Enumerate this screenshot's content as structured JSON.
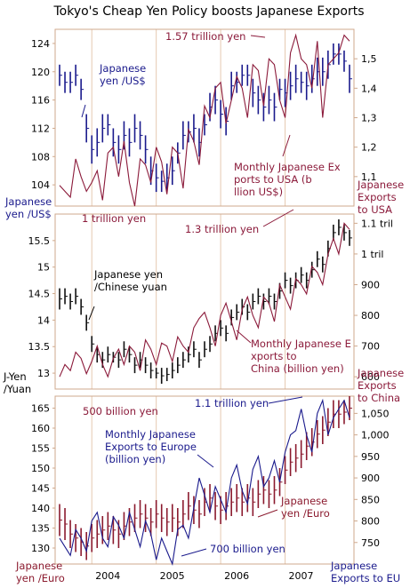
{
  "chart_title": "Tokyo's Cheap Yen Policy boosts Japanese Exports",
  "x_ticks": [
    "2004",
    "2005",
    "2006",
    "2007"
  ],
  "colors": {
    "usd": "#1a1a8c",
    "cny": "#111111",
    "eur": "#8b1a2e",
    "exports": "#8b1a3a",
    "exports_eu": "#1a1a8c",
    "grid": "#e6c9b0",
    "frame": "#cfa98d"
  },
  "chart_data": [
    {
      "type": "line",
      "panel": "usa",
      "x_start": "2003-07",
      "x_step": "month",
      "left_axis": {
        "label": "Japanese yen /US$",
        "ticks": [
          104,
          108,
          112,
          116,
          120,
          124
        ],
        "range": [
          101,
          126
        ]
      },
      "right_axis": {
        "label": "Japanese Exports to USA",
        "ticks": [
          "1,1",
          "1,2",
          "1,3",
          "1,4",
          "1,5"
        ],
        "range": [
          1.0,
          1.6
        ]
      },
      "series": [
        {
          "name": "Japanese yen /US$",
          "kind": "range",
          "axis": "left",
          "lows": [
            118,
            117,
            117,
            118,
            116,
            110,
            107,
            108,
            110,
            111,
            108,
            107,
            109,
            108,
            110,
            109,
            107,
            104,
            103,
            103,
            103,
            104,
            107,
            109,
            110,
            110,
            108,
            111,
            113,
            114,
            112,
            111,
            116,
            117,
            118,
            118,
            115,
            114,
            113,
            114,
            113,
            116,
            115,
            116,
            117,
            117,
            116,
            117,
            118,
            118,
            119,
            121,
            121,
            120,
            117
          ],
          "highs": [
            121,
            120,
            120,
            121,
            119,
            114,
            111,
            112,
            114,
            114,
            112,
            111,
            113,
            112,
            114,
            113,
            111,
            108,
            107,
            106,
            107,
            108,
            110,
            113,
            113,
            114,
            112,
            114,
            117,
            118,
            116,
            115,
            120,
            120,
            121,
            121,
            119,
            118,
            117,
            118,
            117,
            119,
            119,
            120,
            121,
            120,
            120,
            121,
            122,
            122,
            123,
            124,
            124,
            123,
            121
          ]
        },
        {
          "name": "Monthly Japanese Exports to USA (bllion US$)",
          "kind": "line",
          "axis": "right",
          "values": [
            1.07,
            1.05,
            1.03,
            1.16,
            1.1,
            1.05,
            1.08,
            1.12,
            1.02,
            1.18,
            1.2,
            1.1,
            1.22,
            1.08,
            1.0,
            1.16,
            1.14,
            1.08,
            1.2,
            1.15,
            1.04,
            1.2,
            1.18,
            1.06,
            1.26,
            1.22,
            1.14,
            1.34,
            1.3,
            1.4,
            1.42,
            1.28,
            1.36,
            1.44,
            1.4,
            1.3,
            1.48,
            1.46,
            1.34,
            1.5,
            1.48,
            1.36,
            1.3,
            1.52,
            1.58,
            1.5,
            1.48,
            1.4,
            1.56,
            1.3,
            1.48,
            1.5,
            1.52,
            1.58,
            1.56
          ]
        }
      ],
      "annotations": [
        "1.57 trillion yen",
        "Japanese yen /US$",
        "Monthly Japanese Exports to USA (bllion US$)",
        "1 trillion yen"
      ]
    },
    {
      "type": "line",
      "panel": "china",
      "x_start": "2003-07",
      "x_step": "month",
      "left_axis": {
        "label": "J-Yen /Yuan",
        "ticks": [
          13,
          13.5,
          14,
          14.5,
          15,
          15.5
        ],
        "range": [
          12.7,
          16.0
        ]
      },
      "right_axis": {
        "label": "Japanese Exports to China",
        "ticks": [
          "600",
          "700",
          "800",
          "900",
          "1 tril",
          "1.1 tril"
        ],
        "range": [
          560,
          1130
        ]
      },
      "series": [
        {
          "name": "Japanese yen /Chinese yuan",
          "kind": "range",
          "axis": "left",
          "lows": [
            14.2,
            14.3,
            14.2,
            14.3,
            14.1,
            13.8,
            13.4,
            13.2,
            13.1,
            13.2,
            13.2,
            13.1,
            13.3,
            13.2,
            13.0,
            13.1,
            13.0,
            12.9,
            12.9,
            12.8,
            12.85,
            12.9,
            13.0,
            13.1,
            13.2,
            13.3,
            13.1,
            13.3,
            13.4,
            13.6,
            13.7,
            13.6,
            13.9,
            14.0,
            14.1,
            14.0,
            14.2,
            14.3,
            14.2,
            14.3,
            14.2,
            14.4,
            14.6,
            14.5,
            14.6,
            14.7,
            14.6,
            14.8,
            15.0,
            14.9,
            15.2,
            15.5,
            15.6,
            15.5,
            15.4
          ],
          "highs": [
            14.6,
            14.6,
            14.5,
            14.6,
            14.4,
            14.1,
            13.7,
            13.5,
            13.4,
            13.5,
            13.4,
            13.4,
            13.6,
            13.5,
            13.3,
            13.4,
            13.3,
            13.2,
            13.1,
            13.1,
            13.1,
            13.2,
            13.3,
            13.4,
            13.5,
            13.6,
            13.4,
            13.6,
            13.7,
            13.9,
            14.0,
            13.9,
            14.2,
            14.3,
            14.4,
            14.3,
            14.5,
            14.6,
            14.5,
            14.6,
            14.5,
            14.7,
            14.9,
            14.8,
            14.9,
            15.0,
            14.9,
            15.1,
            15.3,
            15.2,
            15.5,
            15.8,
            15.9,
            15.8,
            15.7
          ]
        },
        {
          "name": "Monthly Japanese Exports to China (billion yen)",
          "kind": "line",
          "axis": "right",
          "values": [
            600,
            640,
            620,
            680,
            660,
            610,
            650,
            700,
            640,
            600,
            660,
            690,
            640,
            700,
            680,
            620,
            720,
            690,
            640,
            710,
            700,
            650,
            730,
            700,
            680,
            760,
            790,
            810,
            760,
            700,
            800,
            840,
            780,
            720,
            820,
            860,
            800,
            760,
            860,
            840,
            780,
            900,
            860,
            820,
            920,
            900,
            870,
            960,
            940,
            900,
            1000,
            1050,
            1000,
            1100,
            1080
          ]
        }
      ],
      "annotations": [
        "1.3 trillion yen",
        "Japanese yen /Chinese yuan",
        "Monthly Japanese Exports to China (billion yen)",
        "500 billion yen"
      ]
    },
    {
      "type": "line",
      "panel": "eu",
      "x_start": "2003-07",
      "x_step": "month",
      "left_axis": {
        "label": "Japanese yen /Euro",
        "ticks": [
          130,
          135,
          140,
          145,
          150,
          155,
          160,
          165
        ],
        "range": [
          126,
          168
        ]
      },
      "right_axis": {
        "label": "Japanese Exports to EU",
        "ticks": [
          "750",
          "800",
          "850",
          "900",
          "950",
          "1,000",
          "1,050"
        ],
        "range": [
          700,
          1090
        ]
      },
      "series": [
        {
          "name": "Japanese yen /Euro",
          "kind": "range",
          "axis": "left",
          "lows": [
            133,
            132,
            130,
            129,
            128,
            127,
            129,
            130,
            131,
            132,
            131,
            130,
            132,
            133,
            134,
            135,
            134,
            133,
            135,
            134,
            133,
            134,
            133,
            135,
            137,
            136,
            135,
            138,
            139,
            137,
            136,
            137,
            138,
            139,
            138,
            139,
            138,
            140,
            141,
            140,
            141,
            143,
            146,
            148,
            149,
            150,
            152,
            153,
            155,
            156,
            158,
            160,
            160,
            161,
            162
          ],
          "highs": [
            141,
            140,
            137,
            136,
            135,
            134,
            136,
            137,
            138,
            139,
            138,
            137,
            139,
            140,
            141,
            142,
            141,
            140,
            142,
            141,
            140,
            141,
            140,
            142,
            144,
            143,
            142,
            145,
            146,
            144,
            143,
            144,
            145,
            146,
            145,
            146,
            145,
            147,
            148,
            147,
            148,
            150,
            153,
            155,
            156,
            157,
            159,
            160,
            162,
            163,
            165,
            167,
            167,
            167,
            168
          ]
        },
        {
          "name": "Monthly Japanese Exports to Europe (billion yen)",
          "kind": "line",
          "axis": "right",
          "values": [
            760,
            740,
            720,
            780,
            760,
            730,
            800,
            820,
            760,
            740,
            810,
            790,
            760,
            820,
            780,
            740,
            800,
            770,
            710,
            760,
            730,
            700,
            780,
            790,
            760,
            830,
            900,
            860,
            820,
            880,
            850,
            820,
            900,
            930,
            870,
            840,
            920,
            950,
            880,
            900,
            940,
            890,
            960,
            1000,
            1010,
            1060,
            1000,
            960,
            1050,
            1080,
            1000,
            1040,
            1060,
            1080,
            1040
          ]
        }
      ],
      "annotations": [
        "1.1 trillion yen",
        "Monthly Japanese Exports to Europe (billion yen)",
        "Japanese yen /Euro",
        "700 billion yen"
      ]
    }
  ]
}
